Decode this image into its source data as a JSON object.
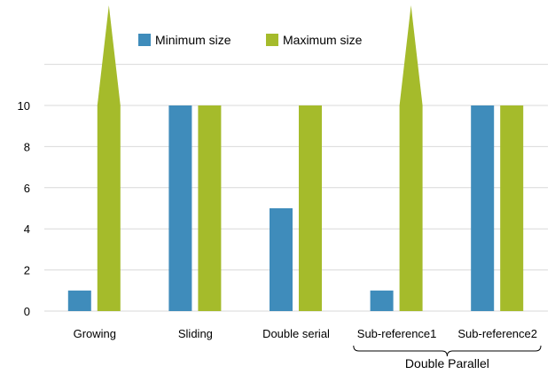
{
  "chart_data": {
    "type": "bar",
    "categories": [
      "Growing",
      "Sliding",
      "Double serial",
      "Sub-reference1",
      "Sub-reference2"
    ],
    "group_labels": [
      {
        "label": "Double Parallel",
        "categories": [
          "Sub-reference1",
          "Sub-reference2"
        ]
      }
    ],
    "series": [
      {
        "name": "Minimum size",
        "color": "#3f8cbb",
        "values": [
          1,
          10,
          5,
          1,
          10
        ]
      },
      {
        "name": "Maximum size",
        "color": "#a5bb2b",
        "values": [
          10,
          10,
          10,
          10,
          10
        ],
        "unbounded": [
          true,
          false,
          false,
          true,
          false
        ]
      }
    ],
    "ylim": [
      0,
      12
    ],
    "yticks": [
      0,
      2,
      4,
      6,
      8,
      10
    ],
    "grid": true,
    "legend_position": "top-center",
    "title": "",
    "xlabel": "",
    "ylabel": ""
  }
}
